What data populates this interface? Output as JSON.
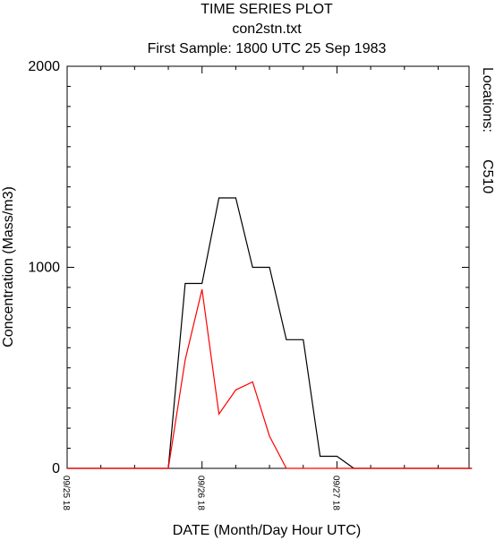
{
  "chart_data": {
    "type": "line",
    "title": "TIME SERIES PLOT",
    "subtitle": "con2stn.txt",
    "subtitle2": "First Sample: 1800 UTC 25 Sep 1983",
    "xlabel": "DATE (Month/Day Hour UTC)",
    "ylabel": "Concentration (Mass/m3)",
    "legend_title": "Locations:",
    "ylim": [
      0,
      2000
    ],
    "y_ticks": [
      "0",
      "1000",
      "2000"
    ],
    "x_range_hours": [
      0,
      48
    ],
    "x_ticks": [
      {
        "hour": 0,
        "label": "09/25 18"
      },
      {
        "hour": 24,
        "label": "09/26 18"
      },
      {
        "hour": 48,
        "label": "09/27 18"
      }
    ],
    "grid": false,
    "legend_position": "right",
    "series": [
      {
        "name": "",
        "color": "#000000",
        "x": [
          0,
          3,
          6,
          9,
          12,
          15,
          18,
          18,
          21,
          21,
          24,
          24,
          27,
          27,
          30,
          30,
          33,
          33,
          36,
          36,
          39,
          39,
          42,
          42,
          45,
          45,
          48,
          48,
          51,
          51,
          54,
          54,
          57,
          57,
          60,
          60,
          63,
          63,
          66,
          66,
          69,
          69,
          72
        ],
        "y": [
          0,
          0,
          0,
          0,
          0,
          0,
          0,
          0,
          920,
          920,
          920,
          920,
          1345,
          1345,
          1345,
          1345,
          1000,
          1000,
          1000,
          1000,
          640,
          640,
          640,
          640,
          60,
          60,
          60,
          60,
          0,
          0,
          0,
          0,
          0,
          0,
          0,
          0,
          0,
          0,
          0,
          0,
          0,
          0,
          0
        ]
      },
      {
        "name": "C510",
        "color": "#ff0000",
        "x": [
          0,
          3,
          6,
          9,
          12,
          15,
          18,
          21,
          24,
          27,
          30,
          33,
          36,
          39,
          42,
          45,
          48,
          51,
          54,
          57,
          60,
          63,
          66,
          69,
          72
        ],
        "y": [
          0,
          0,
          0,
          0,
          0,
          0,
          0,
          540,
          890,
          270,
          390,
          430,
          160,
          0,
          0,
          0,
          0,
          0,
          0,
          0,
          0,
          0,
          0,
          0,
          0
        ]
      }
    ]
  }
}
